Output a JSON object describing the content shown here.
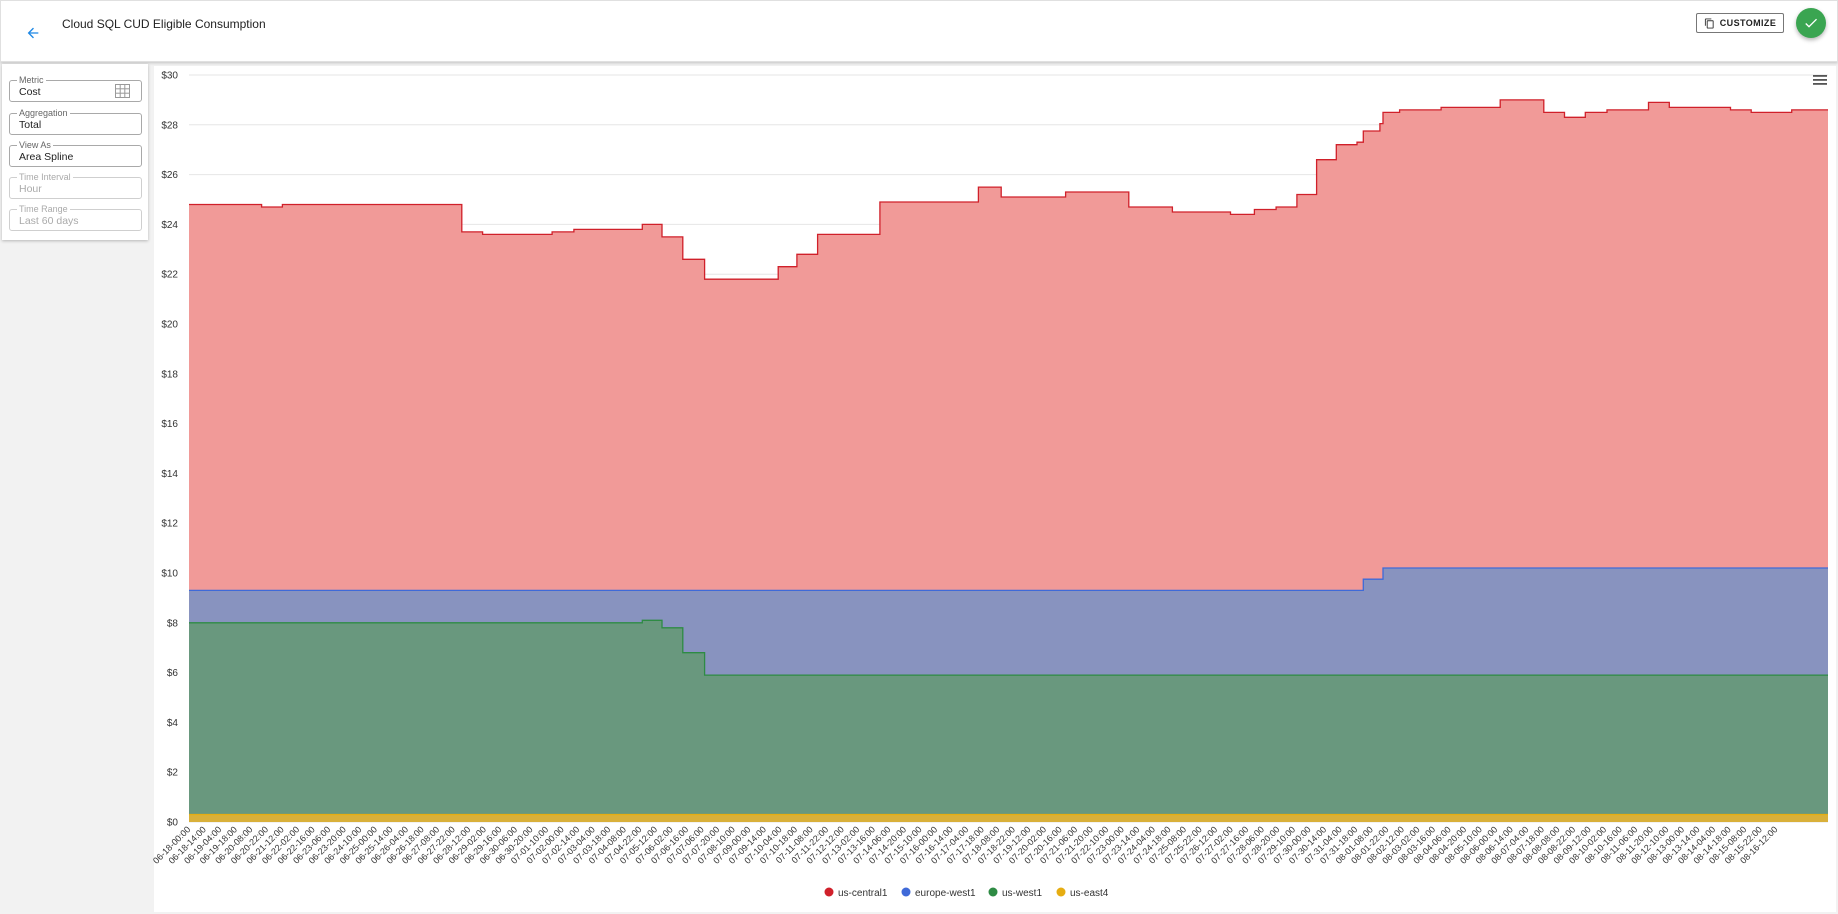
{
  "header": {
    "title": "Cloud SQL CUD Eligible Consumption",
    "customize_label": "CUSTOMIZE"
  },
  "sidebar": {
    "fields": [
      {
        "label": "Metric",
        "value": "Cost",
        "disabled": false
      },
      {
        "label": "Aggregation",
        "value": "Total",
        "disabled": false
      },
      {
        "label": "View As",
        "value": "Area Spline",
        "disabled": false
      },
      {
        "label": "Time Interval",
        "value": "Hour",
        "disabled": true
      },
      {
        "label": "Time Range",
        "value": "Last 60 days",
        "disabled": true
      }
    ]
  },
  "colors": {
    "us-central1": "#f19a98",
    "us-central1-line": "#d0202a",
    "europe-west1": "#8893bf",
    "europe-west1-line": "#3f6ad8",
    "us-west1": "#69987e",
    "us-west1-line": "#2e8b44",
    "us-east4": "#d9b03a",
    "us-east4-line": "#e6ad12",
    "accent": "#1e88e5",
    "success": "#3aa551"
  },
  "icons": {
    "back": "arrow-left-icon",
    "customize": "copy-icon",
    "fab": "check-icon",
    "metric": "grid-icon",
    "chart_menu": "hamburger-menu-icon"
  },
  "chart_data": {
    "type": "area",
    "stacked": true,
    "ylim": [
      0,
      30
    ],
    "yticks": [
      "$0",
      "$2",
      "$4",
      "$6",
      "$8",
      "$10",
      "$12",
      "$14",
      "$16",
      "$18",
      "$20",
      "$22",
      "$24",
      "$26",
      "$28",
      "$30"
    ],
    "ytick_values": [
      0,
      2,
      4,
      6,
      8,
      10,
      12,
      14,
      16,
      18,
      20,
      22,
      24,
      26,
      28,
      30
    ],
    "x_labels": [
      "06-18-00:00",
      "06-18-14:00",
      "06-19-04:00",
      "06-19-18:00",
      "06-20-08:00",
      "06-20-22:00",
      "06-21-12:00",
      "06-22-02:00",
      "06-22-16:00",
      "06-23-06:00",
      "06-23-20:00",
      "06-24-10:00",
      "06-25-00:00",
      "06-25-14:00",
      "06-26-04:00",
      "06-26-18:00",
      "06-27-08:00",
      "06-27-22:00",
      "06-28-12:00",
      "06-29-02:00",
      "06-29-16:00",
      "06-30-06:00",
      "06-30-20:00",
      "07-01-10:00",
      "07-02-00:00",
      "07-02-14:00",
      "07-03-04:00",
      "07-03-18:00",
      "07-04-08:00",
      "07-04-22:00",
      "07-05-12:00",
      "07-06-02:00",
      "07-06-16:00",
      "07-07-06:00",
      "07-07-20:00",
      "07-08-10:00",
      "07-09-00:00",
      "07-09-14:00",
      "07-10-04:00",
      "07-10-18:00",
      "07-11-08:00",
      "07-11-22:00",
      "07-12-12:00",
      "07-13-02:00",
      "07-13-16:00",
      "07-14-06:00",
      "07-14-20:00",
      "07-15-10:00",
      "07-16-00:00",
      "07-16-14:00",
      "07-17-04:00",
      "07-17-18:00",
      "07-18-08:00",
      "07-18-22:00",
      "07-19-12:00",
      "07-20-02:00",
      "07-20-16:00",
      "07-21-06:00",
      "07-21-20:00",
      "07-22-10:00",
      "07-23-00:00",
      "07-23-14:00",
      "07-24-04:00",
      "07-24-18:00",
      "07-25-08:00",
      "07-25-22:00",
      "07-26-12:00",
      "07-27-02:00",
      "07-27-16:00",
      "07-28-06:00",
      "07-28-20:00",
      "07-29-10:00",
      "07-30-00:00",
      "07-30-14:00",
      "07-31-04:00",
      "07-31-18:00",
      "08-01-08:00",
      "08-01-22:00",
      "08-02-12:00",
      "08-03-02:00",
      "08-03-16:00",
      "08-04-06:00",
      "08-04-20:00",
      "08-05-10:00",
      "08-06-00:00",
      "08-06-14:00",
      "08-07-04:00",
      "08-07-18:00",
      "08-08-08:00",
      "08-08-22:00",
      "08-09-12:00",
      "08-10-02:00",
      "08-10-16:00",
      "08-11-06:00",
      "08-11-20:00",
      "08-12-10:00",
      "08-13-00:00",
      "08-13-14:00",
      "08-14-04:00",
      "08-14-18:00",
      "08-15-08:00",
      "08-15-22:00",
      "08-16-12:00"
    ],
    "series_steps_note_removed": true,
    "series": [
      {
        "name": "us-east4",
        "steps": [
          [
            0,
            0.3
          ]
        ]
      },
      {
        "name": "us-west1",
        "steps": [
          [
            0,
            7.7
          ],
          [
            43.7,
            7.8
          ],
          [
            45.6,
            7.5
          ],
          [
            47.6,
            6.5
          ],
          [
            49.7,
            5.6
          ]
        ]
      },
      {
        "name": "europe-west1",
        "steps": [
          [
            0,
            1.3
          ],
          [
            43.7,
            1.2
          ],
          [
            45.6,
            1.5
          ],
          [
            47.6,
            2.5
          ],
          [
            49.7,
            3.4
          ],
          [
            113.2,
            3.85
          ],
          [
            115.1,
            4.3
          ]
        ]
      },
      {
        "name": "us-central1",
        "steps": [
          [
            0,
            15.5
          ],
          [
            7,
            15.4
          ],
          [
            9,
            15.5
          ],
          [
            26.3,
            14.4
          ],
          [
            28.3,
            14.3
          ],
          [
            35,
            14.4
          ],
          [
            37.1,
            14.5
          ],
          [
            43.7,
            14.7
          ],
          [
            45.6,
            14.2
          ],
          [
            47.6,
            13.3
          ],
          [
            49.7,
            12.5
          ],
          [
            56.8,
            13.0
          ],
          [
            58.6,
            13.5
          ],
          [
            60.6,
            14.3
          ],
          [
            66.6,
            15.6
          ],
          [
            76.1,
            16.2
          ],
          [
            78.3,
            15.8
          ],
          [
            80.3,
            15.8
          ],
          [
            82.6,
            15.8
          ],
          [
            84.5,
            16.0
          ],
          [
            86.5,
            16.0
          ],
          [
            88.6,
            16.0
          ],
          [
            90.6,
            15.4
          ],
          [
            94.8,
            15.2
          ],
          [
            100.4,
            15.1
          ],
          [
            102.7,
            15.3
          ],
          [
            104.8,
            15.4
          ],
          [
            106.8,
            15.9
          ],
          [
            108.7,
            17.3
          ],
          [
            110.6,
            17.9
          ],
          [
            112.6,
            18.0
          ],
          [
            114.8,
            18.3
          ],
          [
            116.7,
            18.4
          ],
          [
            118.8,
            18.4
          ],
          [
            120.7,
            18.5
          ],
          [
            122.6,
            18.5
          ],
          [
            124.7,
            18.5
          ],
          [
            126.4,
            18.8
          ],
          [
            128.4,
            18.8
          ],
          [
            130.6,
            18.3
          ],
          [
            132.6,
            18.1
          ],
          [
            134.6,
            18.3
          ],
          [
            136.7,
            18.4
          ],
          [
            138.6,
            18.4
          ],
          [
            140.7,
            18.7
          ],
          [
            142.7,
            18.5
          ],
          [
            144.7,
            18.5
          ],
          [
            146.7,
            18.5
          ],
          [
            148.6,
            18.4
          ],
          [
            150.6,
            18.3
          ],
          [
            152.5,
            18.3
          ],
          [
            154.5,
            18.4
          ],
          [
            156.4,
            18.4
          ]
        ]
      }
    ],
    "legend": [
      "us-central1",
      "europe-west1",
      "us-west1",
      "us-east4"
    ],
    "legend_position": "bottom-center",
    "grid": true
  }
}
